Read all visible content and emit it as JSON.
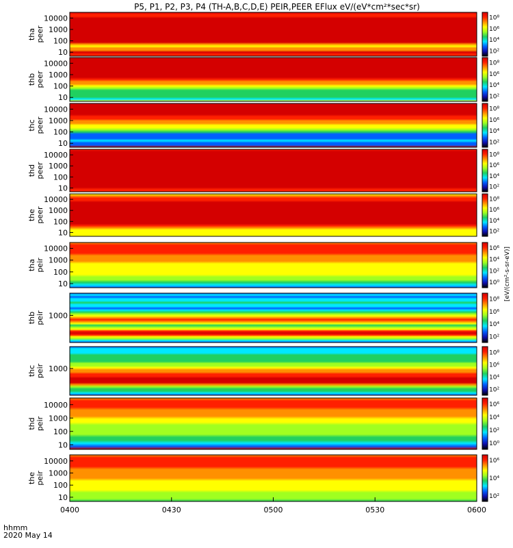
{
  "chart_data": {
    "type": "heatmap",
    "title": "P5, P1, P2, P3, P4 (TH-A,B,C,D,E) PEIR,PEER EFlux eV/(eV*cm²*sec*sr)",
    "time_axis": {
      "label_line1": "hhmm",
      "label_line2": "2020 May 14",
      "ticks": [
        "0400",
        "0430",
        "0500",
        "0530",
        "0600"
      ],
      "range": [
        "0400",
        "0600"
      ]
    },
    "colorbar_label": "[eV/(cm²-s-sr-eV)]",
    "colormap": [
      "#000000",
      "#1010b0",
      "#0060ff",
      "#00e8ff",
      "#20d060",
      "#a0ff20",
      "#ffff00",
      "#ff9000",
      "#ff2000",
      "#d40000"
    ],
    "panels": [
      {
        "ylabel_probe": "tha",
        "ylabel_inst": "peer",
        "yticks": [
          "10000",
          "1000",
          "100",
          "10"
        ],
        "cb_ticks": [
          "10⁸",
          "10⁶",
          "10⁴",
          "10²"
        ],
        "energy_levels": [
          9.2,
          8.0,
          8.3,
          8.8,
          9.1,
          9.2,
          9.3,
          9.4,
          9.5,
          9.6,
          9.7,
          9.8,
          9.7,
          9.5,
          9.2,
          8.5,
          7.0,
          6.0,
          6.5,
          7.0,
          8.5,
          7.5,
          8.0
        ]
      },
      {
        "ylabel_probe": "thb",
        "ylabel_inst": "peer",
        "yticks": [
          "10000",
          "1000",
          "100",
          "10"
        ],
        "cb_ticks": [
          "10⁸",
          "10⁶",
          "10⁴",
          "10²"
        ],
        "energy_levels": [
          9.0,
          9.4,
          9.6,
          9.8,
          9.9,
          9.8,
          9.6,
          9.3,
          9.0,
          8.6,
          8.0,
          7.4,
          6.6,
          5.5,
          4.5,
          4.0,
          3.5,
          3.5,
          3.5,
          3.0,
          6.0
        ]
      },
      {
        "ylabel_probe": "thc",
        "ylabel_inst": "peer",
        "yticks": [
          "10000",
          "1000",
          "100",
          "10"
        ],
        "cb_ticks": [
          "10⁸",
          "10⁶",
          "10⁴",
          "10²"
        ],
        "energy_levels": [
          9.5,
          9.9,
          9.9,
          9.7,
          9.3,
          8.8,
          8.2,
          7.6,
          7.0,
          6.5,
          6.0,
          5.5,
          4.8,
          3.5,
          2.0,
          1.5,
          2.0,
          2.5,
          1.5,
          1.5,
          9.0
        ]
      },
      {
        "ylabel_probe": "thd",
        "ylabel_inst": "peer",
        "yticks": [
          "10000",
          "1000",
          "100",
          "10"
        ],
        "cb_ticks": [
          "10⁸",
          "10⁶",
          "10⁴",
          "10²"
        ],
        "energy_levels": [
          8.0,
          8.5,
          8.8,
          9.0,
          9.1,
          9.2,
          9.3,
          9.4,
          9.5,
          9.6,
          9.7,
          9.7,
          9.6,
          9.5,
          9.3,
          9.1,
          8.9,
          8.6,
          8.2,
          7.5
        ]
      },
      {
        "ylabel_probe": "the",
        "ylabel_inst": "peer",
        "yticks": [
          "10000",
          "1000",
          "100",
          "10"
        ],
        "cb_ticks": [
          "10⁸",
          "10⁶",
          "10⁴",
          "10²"
        ],
        "energy_levels": [
          6.0,
          7.0,
          7.6,
          8.2,
          8.6,
          9.0,
          9.3,
          9.5,
          9.6,
          9.7,
          9.6,
          9.5,
          9.3,
          9.0,
          8.5,
          7.8,
          7.0,
          6.0,
          5.5,
          5.8,
          6.2
        ]
      },
      {
        "ylabel_probe": "tha",
        "ylabel_inst": "peir",
        "yticks": [
          "10000",
          "1000",
          "100",
          "10"
        ],
        "cb_ticks": [
          "10⁶",
          "10⁴",
          "10²",
          "10⁰"
        ],
        "energy_levels": [
          7.0,
          7.8,
          8.2,
          8.0,
          7.5,
          7.0,
          6.8,
          6.6,
          6.4,
          6.2,
          6.0,
          5.8,
          5.5,
          5.2,
          4.8,
          4.2,
          3.0,
          1.5
        ]
      },
      {
        "ylabel_probe": "thb",
        "ylabel_inst": "peir",
        "yticks": [
          "1000"
        ],
        "cb_ticks": [
          "10⁸",
          "10⁶",
          "10⁴",
          "10²"
        ],
        "energy_levels": [
          1.5,
          2.5,
          2.0,
          3.0,
          2.5,
          3.5,
          3.0,
          2.5,
          2.0,
          3.0,
          4.0,
          5.0,
          6.0,
          7.0,
          7.8,
          6.5,
          5.5,
          4.0,
          5.0,
          6.0,
          8.0,
          9.5,
          8.0,
          6.0,
          4.5,
          3.0,
          1.5
        ]
      },
      {
        "ylabel_probe": "thc",
        "ylabel_inst": "peir",
        "yticks": [
          "1000"
        ],
        "cb_ticks": [
          "10⁸",
          "10⁶",
          "10⁴",
          "10²"
        ],
        "energy_levels": [
          2.0,
          2.5,
          3.0,
          2.5,
          3.5,
          4.0,
          3.5,
          4.0,
          4.5,
          5.0,
          5.5,
          6.5,
          7.0,
          7.8,
          8.2,
          9.0,
          9.6,
          8.5,
          6.5,
          5.0,
          4.0,
          3.5,
          3.0,
          2.0
        ]
      },
      {
        "ylabel_probe": "thd",
        "ylabel_inst": "peir",
        "yticks": [
          "10000",
          "1000",
          "100",
          "10"
        ],
        "cb_ticks": [
          "10⁶",
          "10⁴",
          "10²",
          "10⁰"
        ],
        "energy_levels": [
          7.0,
          7.6,
          8.0,
          7.8,
          7.4,
          7.0,
          6.6,
          6.2,
          5.8,
          5.4,
          5.0,
          4.8,
          4.6,
          4.4,
          4.0,
          3.0,
          1.5,
          8.5
        ]
      },
      {
        "ylabel_probe": "the",
        "ylabel_inst": "peir",
        "yticks": [
          "10000",
          "1000",
          "100",
          "10"
        ],
        "cb_ticks": [
          "10⁶",
          "10⁴",
          "10²"
        ],
        "energy_levels": [
          7.4,
          8.0,
          8.3,
          8.1,
          7.8,
          7.4,
          7.0,
          6.8,
          6.5,
          6.2,
          6.0,
          5.8,
          5.5,
          5.3,
          5.0,
          4.7,
          4.4
        ]
      }
    ]
  }
}
